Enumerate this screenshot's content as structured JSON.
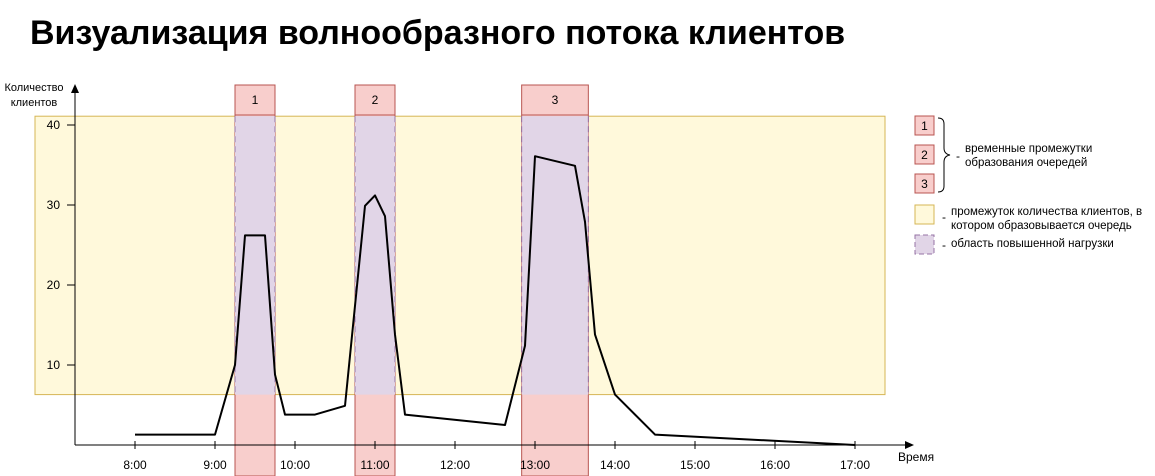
{
  "title": "Визуализация волнообразного потока клиентов",
  "chart_data": {
    "type": "line",
    "ylabel": "Количество клиентов",
    "xlabel": "Время",
    "x_ticks": [
      "8:00",
      "9:00",
      "10:00",
      "11:00",
      "12:00",
      "13:00",
      "14:00",
      "15:00",
      "16:00",
      "17:00"
    ],
    "y_ticks": [
      10,
      20,
      30,
      40
    ],
    "xlim_hours": [
      7.25,
      17.0
    ],
    "ylim": [
      0,
      44
    ],
    "series": [
      {
        "x_hours": [
          8.0,
          9.0,
          9.25,
          9.375,
          9.625,
          9.75,
          9.875,
          10.25,
          10.625,
          10.875,
          11.0,
          11.125,
          11.25,
          11.375,
          11.375,
          12.625,
          12.875,
          13.0,
          13.5,
          13.625,
          13.75,
          14.0,
          14.5,
          17.0
        ],
        "values": [
          1.3,
          1.3,
          10.0,
          26.2,
          26.2,
          8.8,
          3.8,
          3.8,
          4.9,
          29.9,
          31.2,
          28.6,
          13.8,
          3.8,
          3.8,
          2.5,
          12.4,
          36.1,
          34.9,
          27.9,
          13.8,
          6.3,
          1.3,
          0.0
        ]
      }
    ],
    "queue_client_range": [
      6.3,
      41.1
    ],
    "queue_intervals": [
      {
        "label": "1",
        "start": "9:15",
        "end": "9:45"
      },
      {
        "label": "2",
        "start": "10:45",
        "end": "11:15"
      },
      {
        "label": "3",
        "start": "12:50",
        "end": "13:40"
      }
    ],
    "colors": {
      "range_fill": "#fff9db",
      "range_border": "#d6b656",
      "interval_fill": "#f8cecc",
      "interval_border": "#b85450",
      "load_fill": "#e1d5e7",
      "line": "#000000"
    }
  },
  "legend": {
    "interval_labels": [
      "1",
      "2",
      "3"
    ],
    "intervals_text": "временные промежутки образования очередей",
    "range_text": "промежуток количества клиентов, в котором образовывается очередь",
    "load_text": "область повышенной нагрузки",
    "dash": "-"
  }
}
